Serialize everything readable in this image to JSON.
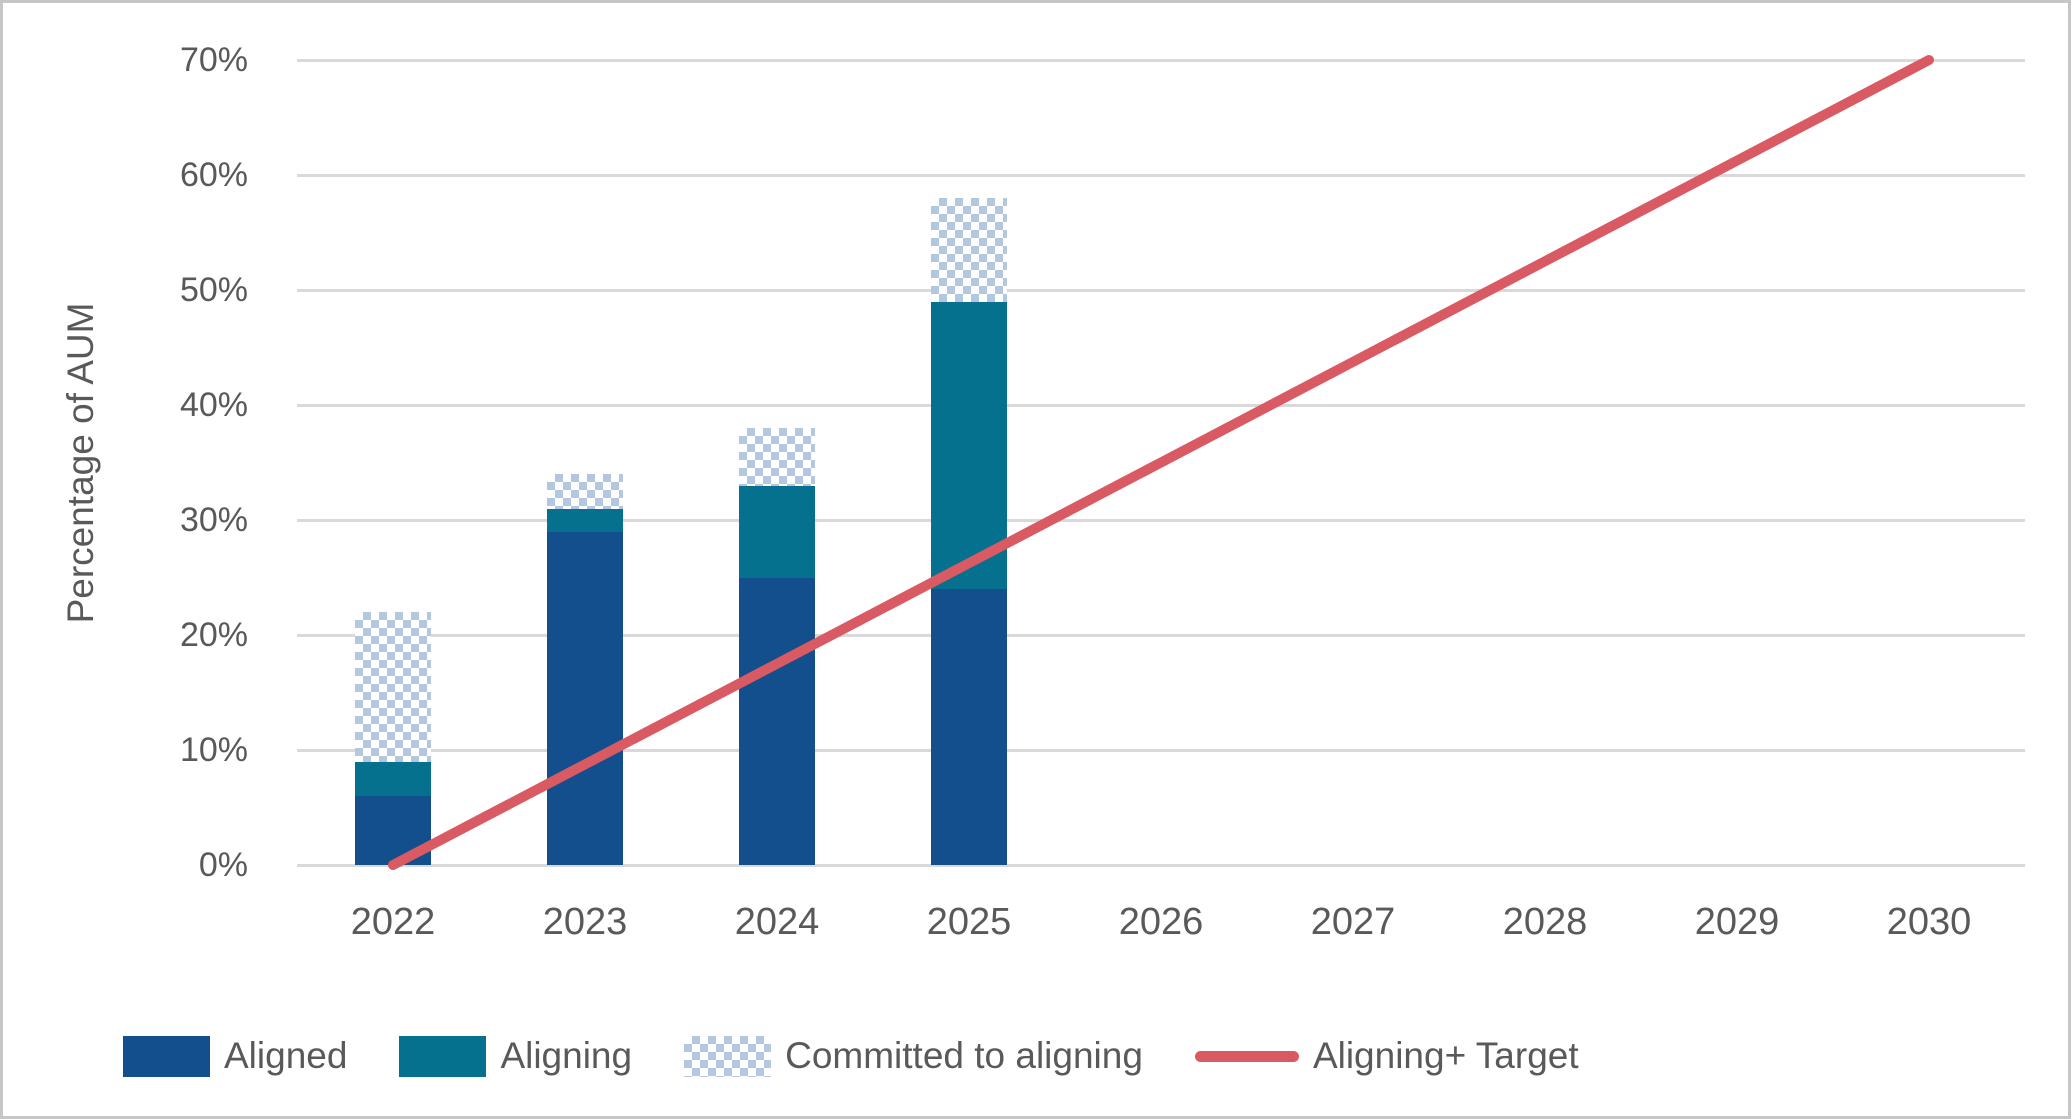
{
  "chart_data": {
    "type": "combo",
    "subtype": "stacked-bar-with-line",
    "title": "",
    "xlabel": "",
    "ylabel": "Percentage of AUM",
    "ylim": [
      0,
      70
    ],
    "ytick_step": 10,
    "ytick_format": "percent",
    "grid": "horizontal-only",
    "legend_position": "bottom",
    "categories": [
      "2022",
      "2023",
      "2024",
      "2025",
      "2026",
      "2027",
      "2028",
      "2029",
      "2030"
    ],
    "bar_series": [
      {
        "name": "Aligned",
        "color": "#124F8C",
        "fill": "solid",
        "values": [
          6,
          29,
          25,
          24,
          null,
          null,
          null,
          null,
          null
        ]
      },
      {
        "name": "Aligning",
        "color": "#05718E",
        "fill": "solid",
        "values": [
          3,
          2,
          8,
          25,
          null,
          null,
          null,
          null,
          null
        ]
      },
      {
        "name": "Committed to aligning",
        "color": "#B3C7E1",
        "fill": "checker-pattern",
        "values": [
          13,
          3,
          5,
          9,
          null,
          null,
          null,
          null,
          null
        ]
      }
    ],
    "bar_stack_totals": [
      22,
      34,
      38,
      58,
      null,
      null,
      null,
      null,
      null
    ],
    "line_series": [
      {
        "name": "Aligning+ Target",
        "color": "#D95A63",
        "values": [
          0,
          8.75,
          17.5,
          26.25,
          35,
          43.75,
          52.5,
          61.25,
          70
        ],
        "note": "straight line from 0% in 2022 to 70% in 2030"
      }
    ],
    "colors": {
      "axis_text": "#595959",
      "gridline": "#D9D9D9",
      "frame_border": "#C6C6C6",
      "background": "#FFFFFF"
    }
  }
}
